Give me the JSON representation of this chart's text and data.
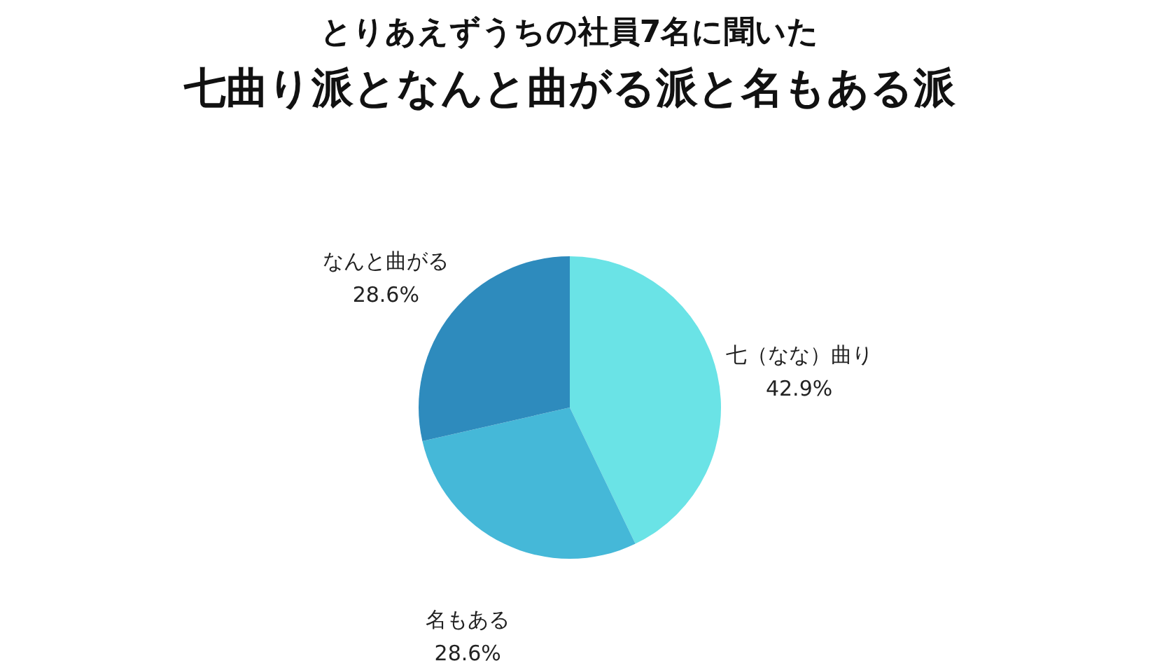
{
  "chart_data": {
    "type": "pie",
    "title": "とりあえずうちの社員7名に聞いた",
    "subtitle": "七曲り派となんと曲がる派と名もある派",
    "categories": [
      "七（なな）曲り",
      "名もある",
      "なんと曲がる"
    ],
    "values": [
      42.9,
      28.6,
      28.6
    ],
    "colors": [
      "#6ae3e6",
      "#45b8d8",
      "#2e8bbd"
    ],
    "value_labels": [
      "42.9%",
      "28.6%",
      "28.6%"
    ]
  }
}
